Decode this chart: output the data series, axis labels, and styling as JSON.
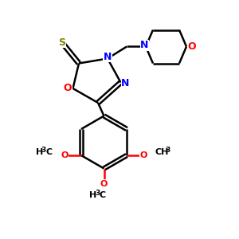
{
  "bg_color": "#ffffff",
  "bond_color": "#000000",
  "N_color": "#0000ff",
  "O_color": "#ff0000",
  "S_color": "#808000",
  "lw": 1.8,
  "xlim": [
    0,
    10
  ],
  "ylim": [
    0,
    10
  ]
}
